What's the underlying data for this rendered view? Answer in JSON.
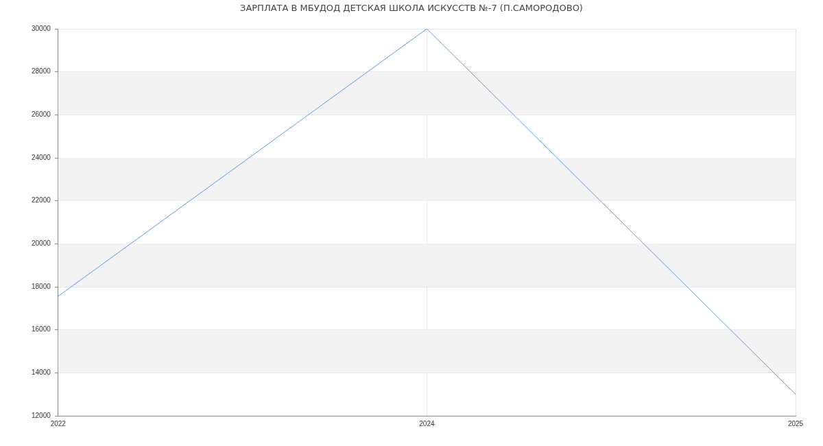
{
  "chart_data": {
    "type": "line",
    "title": "ЗАРПЛАТА В МБУДОД ДЕТСКАЯ ШКОЛА ИСКУССТВ №-7 (П.САМОРОДОВО)",
    "categories": [
      "2022",
      "2024",
      "2025"
    ],
    "series": [
      {
        "color": "#6495ed",
        "values": [
          17560,
          30000,
          13000
        ]
      }
    ],
    "ylim": [
      12000,
      30000
    ],
    "yticks": [
      12000,
      14000,
      16000,
      18000,
      20000,
      22000,
      24000,
      26000,
      28000,
      30000
    ],
    "grid": true,
    "legend": false,
    "marker": "none",
    "line_style": "solid"
  }
}
